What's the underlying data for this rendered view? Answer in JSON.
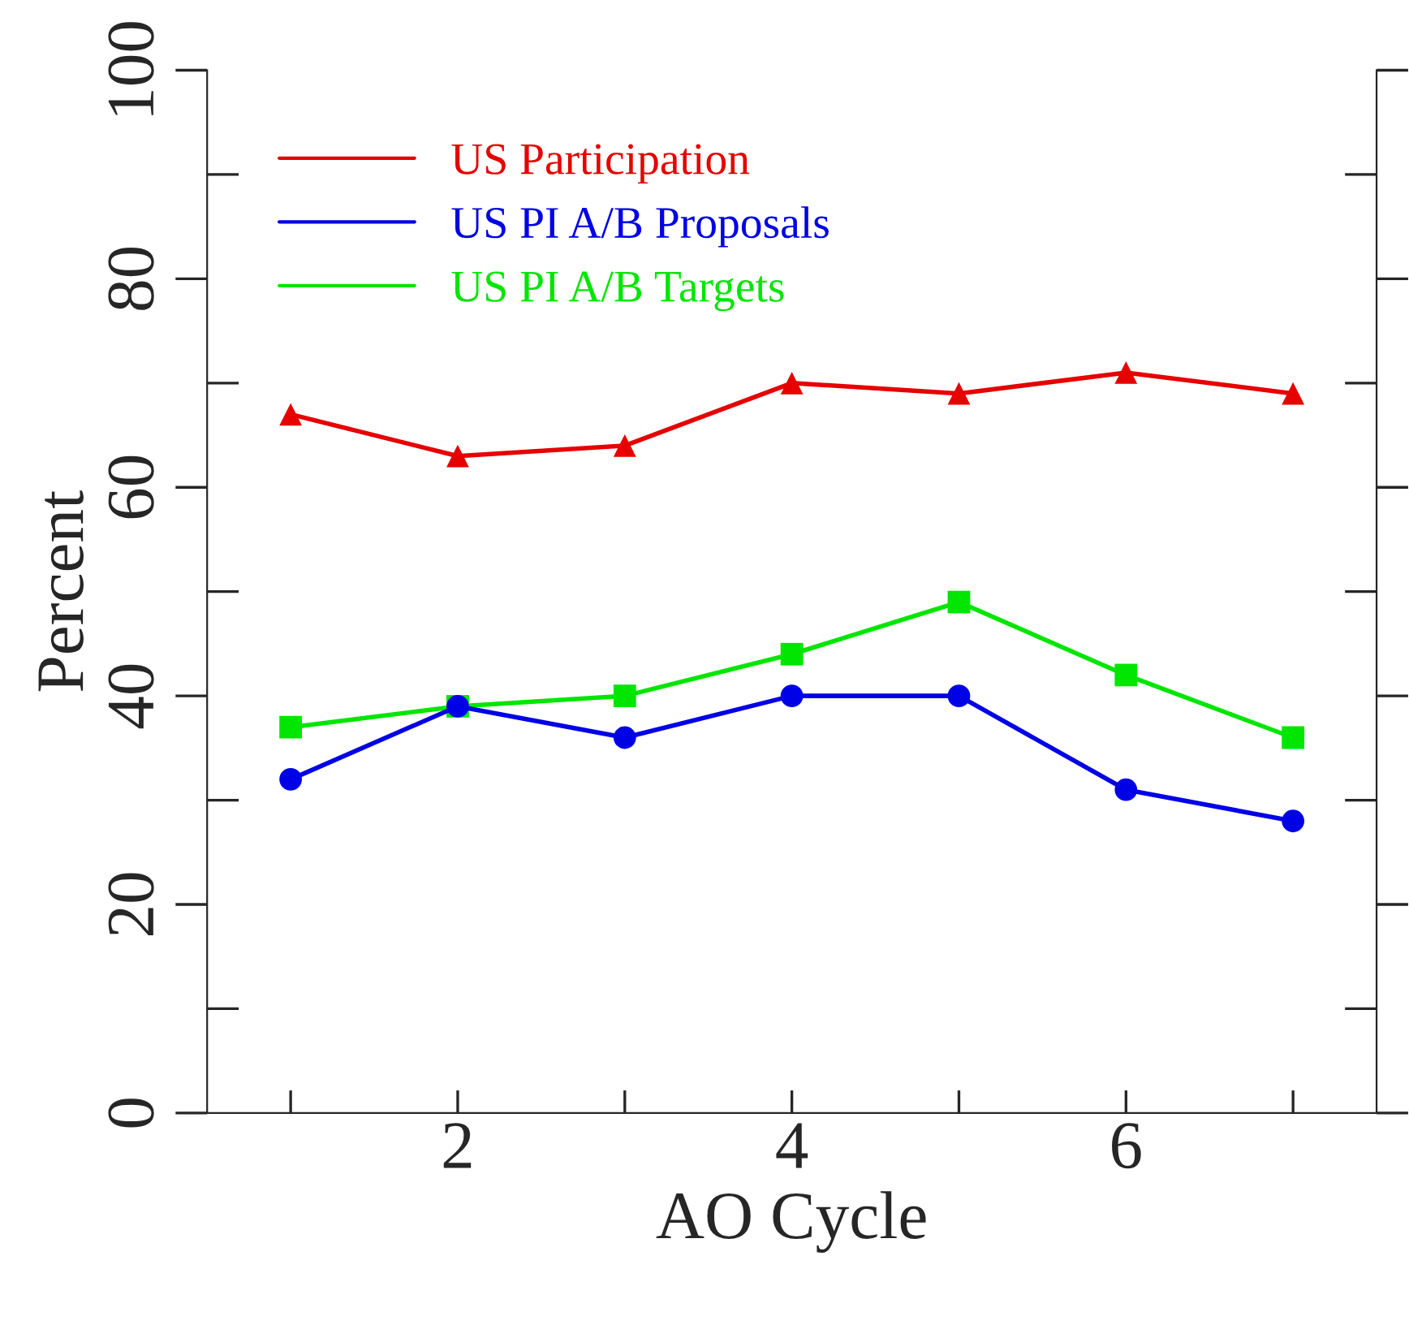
{
  "chart_data": {
    "type": "line",
    "xlabel": "AO Cycle",
    "ylabel": "Percent",
    "x": [
      1,
      2,
      3,
      4,
      5,
      6,
      7
    ],
    "series": [
      {
        "name": "US Participation",
        "color": "#e60000",
        "values": [
          67,
          63,
          64,
          70,
          69,
          71,
          69
        ],
        "marker": "triangle"
      },
      {
        "name": "US PI A/B Proposals",
        "color": "#0000e6",
        "values": [
          32,
          39,
          36,
          40,
          40,
          31,
          28
        ],
        "marker": "circle"
      },
      {
        "name": "US PI A/B Targets",
        "color": "#00e600",
        "values": [
          37,
          39,
          40,
          44,
          49,
          42,
          36
        ],
        "marker": "square"
      }
    ],
    "xlim": [
      0.5,
      7.5
    ],
    "xticks": [
      {
        "value": 1,
        "label": null
      },
      2,
      {
        "value": 3,
        "label": null
      },
      4,
      {
        "value": 5,
        "label": null
      },
      6,
      {
        "value": 7,
        "label": null
      }
    ],
    "ylim": [
      0,
      100
    ],
    "yticks": [
      0,
      20,
      40,
      60,
      80,
      100
    ],
    "grid": false,
    "legend": "top left",
    "line_style": "solid"
  }
}
